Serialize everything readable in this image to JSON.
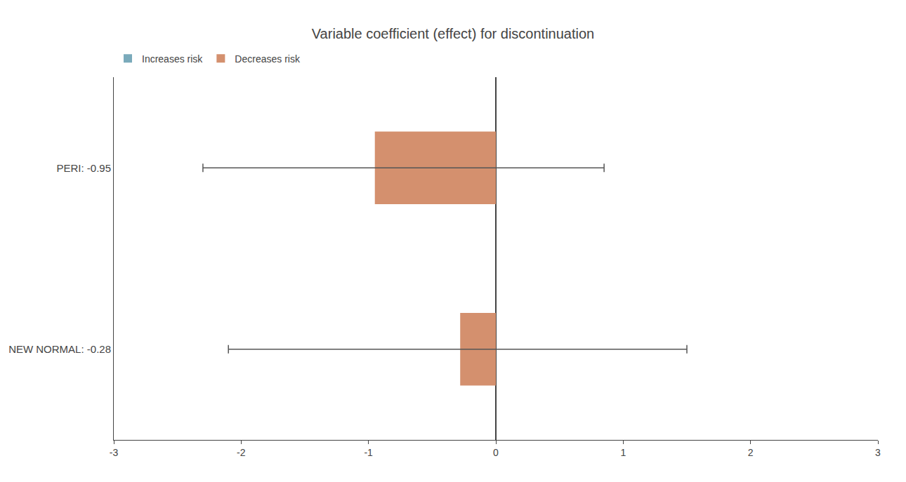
{
  "chart_data": {
    "type": "bar",
    "orientation": "horizontal",
    "title": "Variable coefficient (effect) for discontinuation",
    "categories": [
      "PERI: -0.95",
      "NEW NORMAL: -0.28"
    ],
    "series": [
      {
        "name": "Increases risk",
        "color": "#7aaabb",
        "values": [
          null,
          null
        ]
      },
      {
        "name": "Decreases risk",
        "color": "#d4906e",
        "values": [
          -0.95,
          -0.28
        ],
        "ci_low": [
          -2.3,
          -2.1
        ],
        "ci_high": [
          0.85,
          1.5
        ]
      }
    ],
    "xlim": [
      -3,
      3
    ],
    "xticks": [
      -3,
      -2,
      -1,
      0,
      1,
      2,
      3
    ],
    "grid": false,
    "legend": "upper left"
  }
}
